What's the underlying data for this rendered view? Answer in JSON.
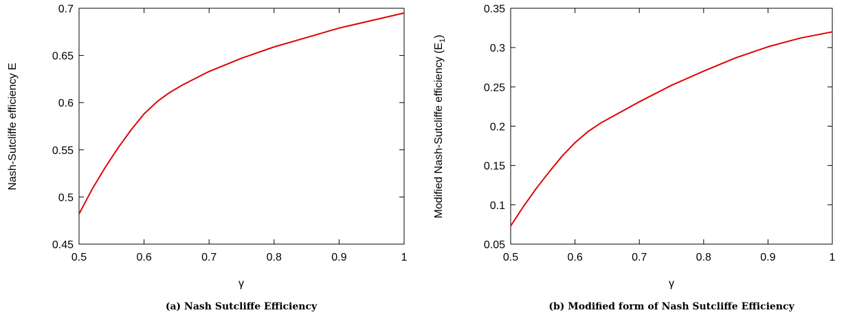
{
  "chart_data": [
    {
      "type": "line",
      "caption": "(a) Nash Sutcliffe Efficiency",
      "xlabel": "γ",
      "ylabel": "Nash-Sutcliffe efficiency E",
      "ylabel_sub": "",
      "ylabel_suffix": "",
      "xlim": [
        0.5,
        1.0
      ],
      "ylim": [
        0.45,
        0.7
      ],
      "xticks": [
        "0.5",
        "0.6",
        "0.7",
        "0.8",
        "0.9",
        "1"
      ],
      "yticks": [
        "0.45",
        "0.5",
        "0.55",
        "0.6",
        "0.65",
        "0.7"
      ],
      "grid": false,
      "series": [
        {
          "color": "#e00000",
          "x": [
            0.5,
            0.52,
            0.54,
            0.56,
            0.58,
            0.6,
            0.62,
            0.64,
            0.66,
            0.7,
            0.75,
            0.8,
            0.85,
            0.9,
            0.95,
            1.0
          ],
          "y": [
            0.482,
            0.508,
            0.531,
            0.552,
            0.571,
            0.588,
            0.601,
            0.611,
            0.619,
            0.633,
            0.647,
            0.659,
            0.669,
            0.679,
            0.687,
            0.695
          ]
        }
      ]
    },
    {
      "type": "line",
      "caption": "(b) Modified form of Nash Sutcliffe Efficiency",
      "xlabel": "γ",
      "ylabel": "Modified Nash-Sutcliffe efficiency (E",
      "ylabel_sub": "1",
      "ylabel_suffix": ")",
      "xlim": [
        0.5,
        1.0
      ],
      "ylim": [
        0.05,
        0.35
      ],
      "xticks": [
        "0.5",
        "0.6",
        "0.7",
        "0.8",
        "0.9",
        "1"
      ],
      "yticks": [
        "0.05",
        "0.1",
        "0.15",
        "0.2",
        "0.25",
        "0.3",
        "0.35"
      ],
      "grid": false,
      "series": [
        {
          "color": "#e00000",
          "x": [
            0.5,
            0.52,
            0.54,
            0.56,
            0.58,
            0.6,
            0.62,
            0.64,
            0.66,
            0.7,
            0.75,
            0.8,
            0.85,
            0.9,
            0.95,
            1.0
          ],
          "y": [
            0.073,
            0.098,
            0.121,
            0.142,
            0.162,
            0.179,
            0.193,
            0.204,
            0.213,
            0.231,
            0.252,
            0.27,
            0.287,
            0.301,
            0.312,
            0.32
          ]
        }
      ]
    }
  ]
}
